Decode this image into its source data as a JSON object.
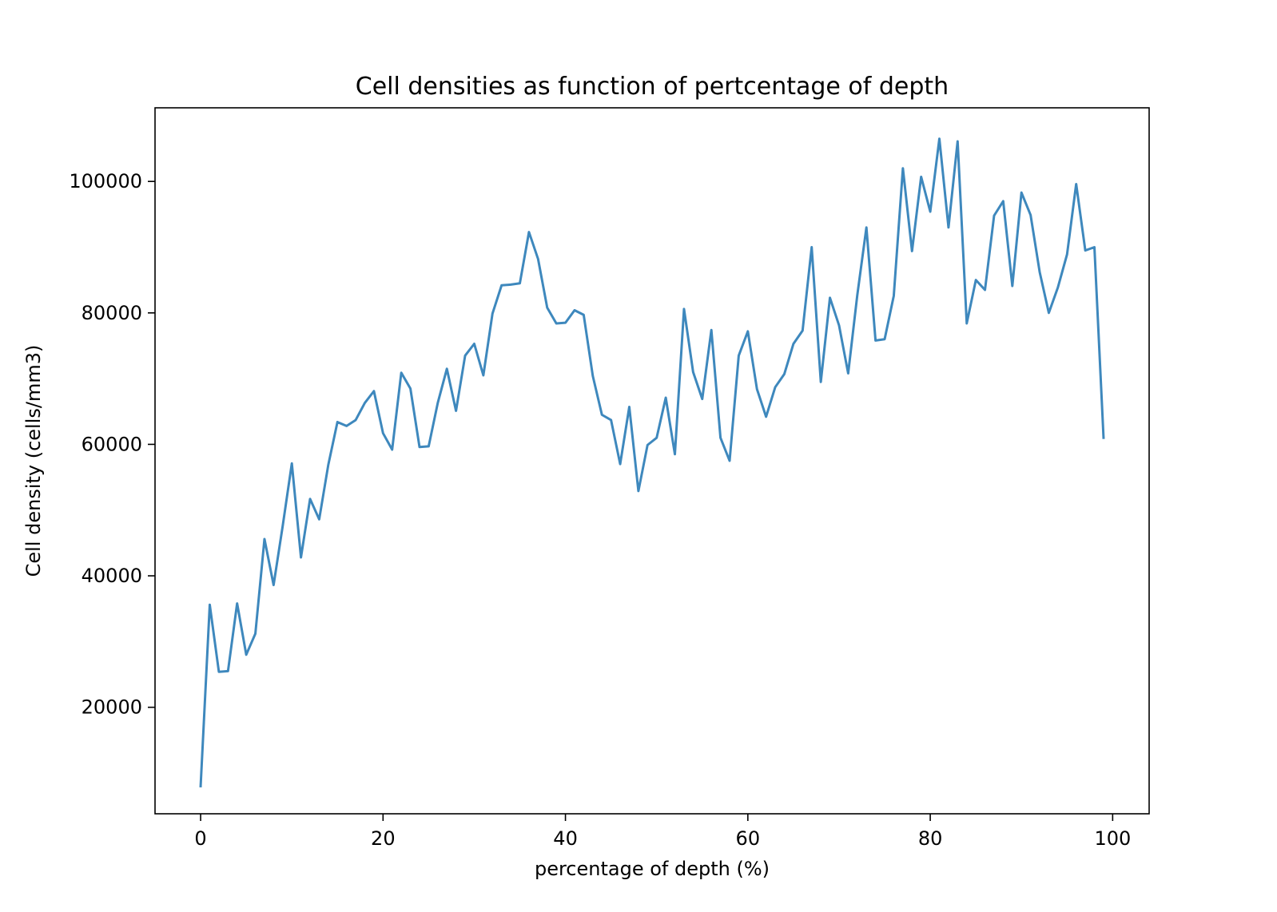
{
  "chart_data": {
    "type": "line",
    "title": "Cell densities as function of pertcentage of depth",
    "xlabel": "percentage of depth (%)",
    "ylabel": "Cell density (cells/mm3)",
    "xlim": [
      -5,
      104
    ],
    "ylim": [
      3800,
      111200
    ],
    "xticks": [
      0,
      20,
      40,
      60,
      80,
      100
    ],
    "xtick_labels": [
      "0",
      "20",
      "40",
      "60",
      "80",
      "100"
    ],
    "yticks": [
      20000,
      40000,
      60000,
      80000,
      100000
    ],
    "ytick_labels": [
      "20000",
      "40000",
      "60000",
      "80000",
      "100000"
    ],
    "grid": false,
    "series": [
      {
        "color": "#3e88bd",
        "x": [
          0,
          1,
          2,
          3,
          4,
          5,
          6,
          7,
          8,
          9,
          10,
          11,
          12,
          13,
          14,
          15,
          16,
          17,
          18,
          19,
          20,
          21,
          22,
          23,
          24,
          25,
          26,
          27,
          28,
          29,
          30,
          31,
          32,
          33,
          34,
          35,
          36,
          37,
          38,
          39,
          40,
          41,
          42,
          43,
          44,
          45,
          46,
          47,
          48,
          49,
          50,
          51,
          52,
          53,
          54,
          55,
          56,
          57,
          58,
          59,
          60,
          61,
          62,
          63,
          64,
          65,
          66,
          67,
          68,
          69,
          70,
          71,
          72,
          73,
          74,
          75,
          76,
          77,
          78,
          79,
          80,
          81,
          82,
          83,
          84,
          85,
          86,
          87,
          88,
          89,
          90,
          91,
          92,
          93,
          94,
          95,
          96,
          97,
          98,
          99
        ],
        "y": [
          8000,
          35600,
          25400,
          25500,
          35800,
          28000,
          31200,
          45600,
          38600,
          47600,
          57100,
          42800,
          51700,
          48600,
          56900,
          63400,
          62800,
          63700,
          66300,
          68100,
          61700,
          59200,
          70900,
          68500,
          59600,
          59700,
          66300,
          71500,
          65100,
          73500,
          75300,
          70500,
          79900,
          84200,
          84300,
          84500,
          92300,
          88200,
          80800,
          78400,
          78500,
          80400,
          79700,
          70400,
          64500,
          63700,
          57000,
          65700,
          52900,
          59900,
          61000,
          67100,
          58500,
          80600,
          71000,
          66900,
          77400,
          61000,
          57500,
          73500,
          77200,
          68400,
          64200,
          68700,
          70700,
          75300,
          77300,
          90000,
          69500,
          82300,
          78100,
          70800,
          82700,
          93000,
          75800,
          76000,
          82600,
          102000,
          89400,
          100700,
          95400,
          106500,
          93000,
          106100,
          78400,
          85000,
          83500,
          94800,
          97000,
          84100,
          98300,
          94900,
          86200,
          80000,
          83900,
          88900,
          99600,
          89500,
          90000,
          61000
        ]
      }
    ]
  }
}
